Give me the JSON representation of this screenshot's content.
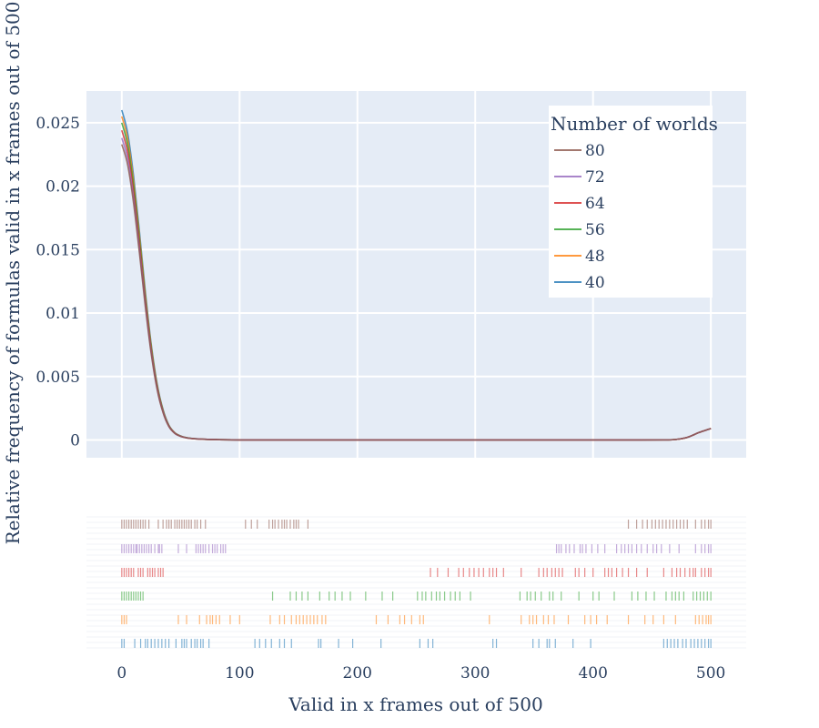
{
  "chart_data": {
    "type": "line",
    "title": "",
    "xlabel": "Valid in x frames out of 500",
    "ylabel": "Relative frequency of formulas valid in x frames out of 500",
    "xlim": [
      -30,
      530
    ],
    "ylim": [
      -0.0014,
      0.0275
    ],
    "x_ticks": [
      0,
      100,
      200,
      300,
      400,
      500
    ],
    "x_tick_labels": [
      "0",
      "100",
      "200",
      "300",
      "400",
      "500"
    ],
    "y_ticks": [
      0,
      0.005,
      0.01,
      0.015,
      0.02,
      0.025
    ],
    "y_tick_labels": [
      "0",
      "0.005",
      "0.01",
      "0.015",
      "0.02",
      "0.025"
    ],
    "grid": true,
    "legend_title": "Number of worlds",
    "legend_position": "top-right",
    "series": [
      {
        "name": "80",
        "color": "#8c564b",
        "peak": 0.0233
      },
      {
        "name": "72",
        "color": "#9467bd",
        "peak": 0.0238
      },
      {
        "name": "64",
        "color": "#d62728",
        "peak": 0.0244
      },
      {
        "name": "56",
        "color": "#2ca02c",
        "peak": 0.025
      },
      {
        "name": "48",
        "color": "#ff7f0e",
        "peak": 0.0255
      },
      {
        "name": "40",
        "color": "#1f77b4",
        "peak": 0.026
      }
    ],
    "density_shape": {
      "x": [
        0,
        5,
        10,
        15,
        20,
        25,
        30,
        35,
        40,
        45,
        50,
        55,
        60,
        70,
        80,
        100,
        150,
        200,
        300,
        400,
        440,
        460,
        470,
        480,
        490,
        500
      ],
      "y_relative": [
        1.0,
        0.93,
        0.8,
        0.63,
        0.45,
        0.29,
        0.17,
        0.092,
        0.045,
        0.022,
        0.012,
        0.007,
        0.0045,
        0.0022,
        0.0011,
        0.0003,
        0.0002,
        0.0001,
        0.0001,
        0.0001,
        0.0002,
        0.0005,
        0.0015,
        0.0085,
        0.024,
        0.037
      ]
    },
    "rug": {
      "80": [
        0,
        2,
        4,
        6,
        8,
        10,
        12,
        14,
        16,
        18,
        20,
        23,
        31,
        35,
        38,
        40,
        42,
        45,
        47,
        49,
        51,
        53,
        55,
        57,
        59,
        62,
        64,
        67,
        71,
        105,
        110,
        115,
        125,
        128,
        130,
        133,
        136,
        138,
        140,
        143,
        146,
        148,
        150,
        158,
        430,
        437,
        442,
        446,
        450,
        453,
        456,
        459,
        462,
        465,
        468,
        471,
        474,
        477,
        480,
        487,
        492,
        495,
        498,
        500
      ],
      "72": [
        0,
        2,
        4,
        6,
        8,
        10,
        12,
        13,
        15,
        17,
        19,
        21,
        23,
        25,
        28,
        31,
        32,
        34,
        48,
        55,
        63,
        65,
        67,
        69,
        71,
        74,
        77,
        79,
        81,
        84,
        86,
        88,
        369,
        371,
        373,
        377,
        380,
        384,
        389,
        391,
        394,
        399,
        404,
        410,
        420,
        424,
        427,
        430,
        433,
        437,
        441,
        446,
        451,
        454,
        458,
        465,
        473,
        487,
        492,
        495,
        498,
        500
      ],
      "64": [
        0,
        2,
        4,
        6,
        8,
        10,
        14,
        16,
        18,
        22,
        24,
        26,
        28,
        31,
        33,
        35,
        262,
        268,
        277,
        286,
        290,
        295,
        299,
        303,
        307,
        312,
        315,
        318,
        324,
        339,
        354,
        358,
        361,
        365,
        368,
        371,
        374,
        385,
        388,
        393,
        400,
        410,
        413,
        416,
        420,
        425,
        430,
        437,
        446,
        460,
        467,
        471,
        474,
        478,
        482,
        485,
        487,
        492,
        495,
        498,
        500
      ],
      "56": [
        0,
        2,
        4,
        6,
        8,
        10,
        12,
        14,
        16,
        18,
        128,
        143,
        148,
        153,
        158,
        168,
        176,
        181,
        187,
        194,
        207,
        221,
        230,
        251,
        255,
        258,
        263,
        267,
        270,
        274,
        279,
        283,
        287,
        296,
        338,
        344,
        347,
        351,
        356,
        363,
        366,
        373,
        388,
        400,
        405,
        418,
        433,
        438,
        445,
        452,
        462,
        467,
        470,
        473,
        477,
        485,
        488,
        491,
        494,
        497,
        500
      ],
      "48": [
        0,
        2,
        4,
        48,
        55,
        66,
        72,
        75,
        77,
        80,
        83,
        92,
        100,
        126,
        134,
        138,
        144,
        148,
        151,
        154,
        157,
        160,
        163,
        166,
        170,
        173,
        216,
        226,
        236,
        240,
        246,
        253,
        256,
        312,
        339,
        346,
        349,
        352,
        358,
        362,
        367,
        379,
        393,
        398,
        403,
        412,
        430,
        444,
        451,
        460,
        470,
        487,
        490,
        493,
        496,
        498,
        500
      ],
      "40": [
        0,
        2,
        11,
        16,
        20,
        22,
        25,
        28,
        31,
        34,
        37,
        40,
        46,
        51,
        53,
        55,
        59,
        62,
        64,
        67,
        69,
        74,
        113,
        117,
        122,
        127,
        134,
        138,
        144,
        167,
        169,
        184,
        196,
        220,
        253,
        260,
        264,
        315,
        318,
        349,
        354,
        361,
        363,
        368,
        383,
        398,
        460,
        463,
        466,
        469,
        472,
        476,
        479,
        483,
        486,
        489,
        492,
        495,
        498,
        500
      ]
    }
  }
}
